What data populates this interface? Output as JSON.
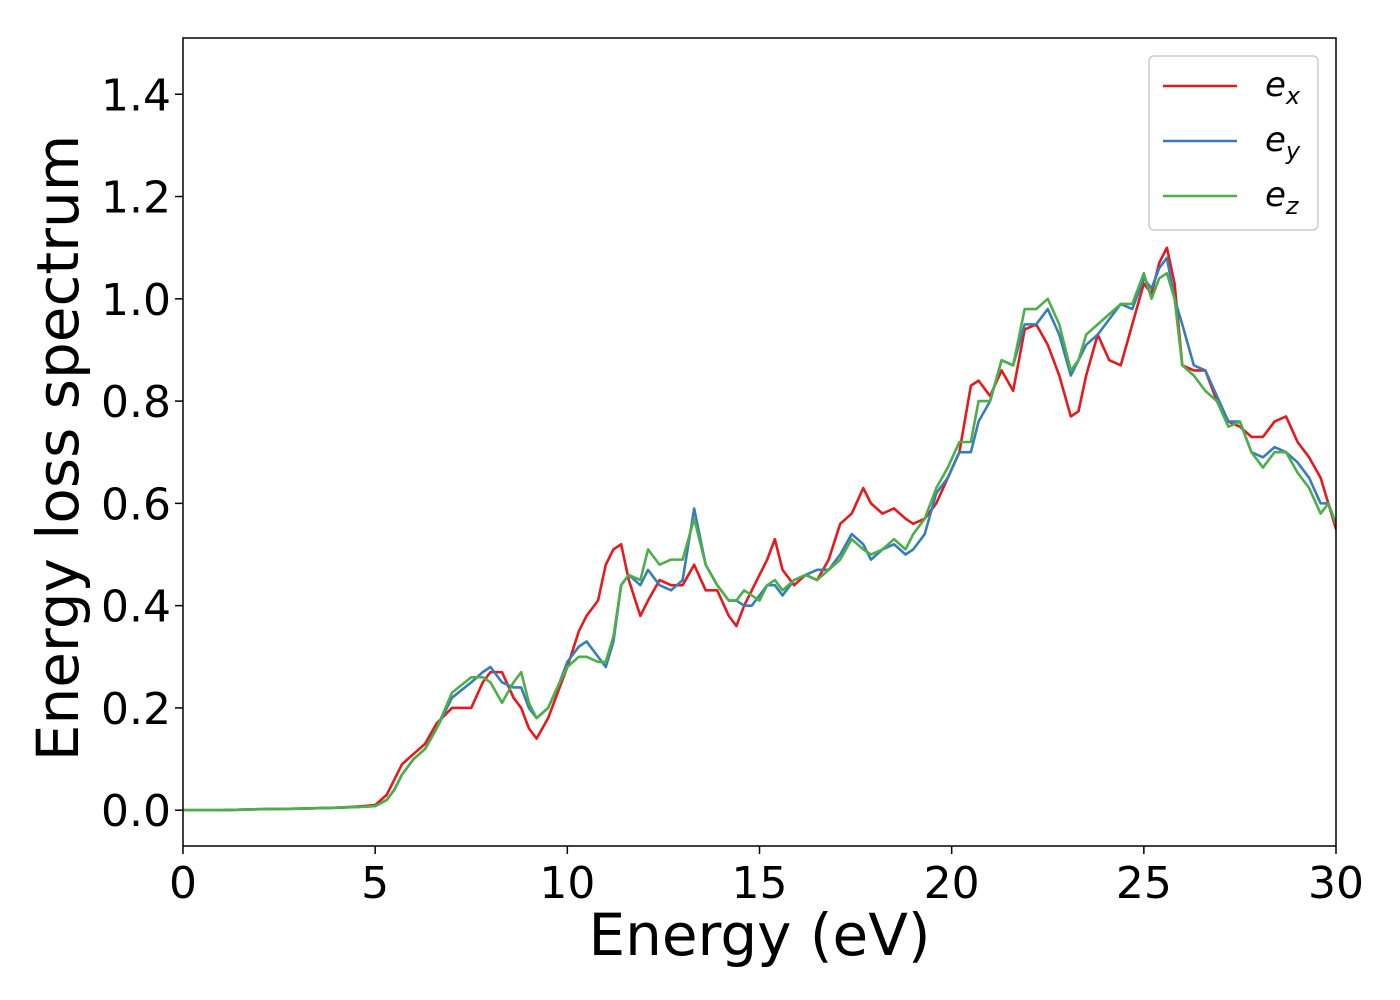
{
  "chart_data": {
    "type": "line",
    "xlabel": "Energy (eV)",
    "ylabel": "Energy loss spectrum",
    "xlim": [
      0,
      30
    ],
    "ylim": [
      -0.07,
      1.51
    ],
    "xticks": [
      "0",
      "5",
      "10",
      "15",
      "20",
      "25",
      "30"
    ],
    "yticks": [
      "0.0",
      "0.2",
      "0.4",
      "0.6",
      "0.8",
      "1.0",
      "1.2",
      "1.4"
    ],
    "xtick_values": [
      0,
      5,
      10,
      15,
      20,
      25,
      30
    ],
    "ytick_values": [
      0.0,
      0.2,
      0.4,
      0.6,
      0.8,
      1.0,
      1.2,
      1.4
    ],
    "grid": false,
    "legend_position": "top-right",
    "series": [
      {
        "name": "e_x",
        "label_base": "e",
        "label_sub": "x",
        "color": "#e41a1c",
        "x": [
          0,
          1,
          2,
          3,
          4,
          4.5,
          5.0,
          5.3,
          5.5,
          5.7,
          6.0,
          6.3,
          6.6,
          7.0,
          7.5,
          7.8,
          8.0,
          8.3,
          8.6,
          8.8,
          9.0,
          9.2,
          9.5,
          9.8,
          10.0,
          10.3,
          10.5,
          10.8,
          11.0,
          11.2,
          11.4,
          11.6,
          11.9,
          12.1,
          12.4,
          12.7,
          13.0,
          13.3,
          13.6,
          13.9,
          14.2,
          14.4,
          14.6,
          14.8,
          15.0,
          15.2,
          15.4,
          15.6,
          15.9,
          16.2,
          16.5,
          16.8,
          17.1,
          17.4,
          17.7,
          17.9,
          18.2,
          18.5,
          18.8,
          19.0,
          19.3,
          19.6,
          19.9,
          20.2,
          20.5,
          20.7,
          21.0,
          21.3,
          21.6,
          21.9,
          22.2,
          22.5,
          22.8,
          23.1,
          23.3,
          23.5,
          23.8,
          24.1,
          24.4,
          24.7,
          25.0,
          25.2,
          25.4,
          25.6,
          25.8,
          26.0,
          26.3,
          26.6,
          26.9,
          27.2,
          27.5,
          27.8,
          28.1,
          28.4,
          28.7,
          29.0,
          29.3,
          29.6,
          29.8,
          30.0
        ],
        "values": [
          0.0,
          0.0,
          0.002,
          0.003,
          0.005,
          0.007,
          0.01,
          0.03,
          0.06,
          0.09,
          0.11,
          0.13,
          0.17,
          0.2,
          0.2,
          0.25,
          0.27,
          0.27,
          0.22,
          0.2,
          0.16,
          0.14,
          0.18,
          0.24,
          0.28,
          0.35,
          0.38,
          0.41,
          0.48,
          0.51,
          0.52,
          0.45,
          0.38,
          0.41,
          0.45,
          0.44,
          0.44,
          0.48,
          0.43,
          0.43,
          0.38,
          0.36,
          0.4,
          0.43,
          0.46,
          0.49,
          0.53,
          0.47,
          0.44,
          0.46,
          0.45,
          0.49,
          0.56,
          0.58,
          0.63,
          0.6,
          0.58,
          0.59,
          0.57,
          0.56,
          0.57,
          0.6,
          0.65,
          0.7,
          0.83,
          0.84,
          0.81,
          0.86,
          0.82,
          0.94,
          0.95,
          0.91,
          0.85,
          0.77,
          0.78,
          0.85,
          0.93,
          0.88,
          0.87,
          0.95,
          1.03,
          1.01,
          1.07,
          1.1,
          1.03,
          0.87,
          0.86,
          0.86,
          0.8,
          0.76,
          0.75,
          0.73,
          0.73,
          0.76,
          0.77,
          0.72,
          0.69,
          0.65,
          0.6,
          0.55
        ]
      },
      {
        "name": "e_y",
        "label_base": "e",
        "label_sub": "y",
        "color": "#377eb8",
        "x": [
          0,
          1,
          2,
          3,
          4,
          4.5,
          5.0,
          5.3,
          5.5,
          5.7,
          6.0,
          6.3,
          6.6,
          7.0,
          7.5,
          7.8,
          8.0,
          8.3,
          8.6,
          8.8,
          9.0,
          9.2,
          9.5,
          9.8,
          10.0,
          10.3,
          10.5,
          10.8,
          11.0,
          11.2,
          11.4,
          11.6,
          11.9,
          12.1,
          12.4,
          12.7,
          13.0,
          13.3,
          13.6,
          13.9,
          14.2,
          14.4,
          14.6,
          14.8,
          15.0,
          15.2,
          15.4,
          15.6,
          15.9,
          16.2,
          16.5,
          16.8,
          17.1,
          17.4,
          17.7,
          17.9,
          18.2,
          18.5,
          18.8,
          19.0,
          19.3,
          19.6,
          19.9,
          20.2,
          20.5,
          20.7,
          21.0,
          21.3,
          21.6,
          21.9,
          22.2,
          22.5,
          22.8,
          23.1,
          23.3,
          23.5,
          23.8,
          24.1,
          24.4,
          24.7,
          25.0,
          25.2,
          25.4,
          25.6,
          25.8,
          26.0,
          26.3,
          26.6,
          26.9,
          27.2,
          27.5,
          27.8,
          28.1,
          28.4,
          28.7,
          29.0,
          29.3,
          29.6,
          29.8,
          30.0
        ],
        "values": [
          0.0,
          0.0,
          0.002,
          0.003,
          0.005,
          0.006,
          0.008,
          0.02,
          0.04,
          0.07,
          0.1,
          0.12,
          0.16,
          0.22,
          0.25,
          0.27,
          0.28,
          0.25,
          0.24,
          0.24,
          0.2,
          0.18,
          0.2,
          0.25,
          0.29,
          0.32,
          0.33,
          0.3,
          0.28,
          0.33,
          0.44,
          0.46,
          0.44,
          0.47,
          0.44,
          0.43,
          0.45,
          0.59,
          0.48,
          0.44,
          0.41,
          0.41,
          0.4,
          0.4,
          0.42,
          0.44,
          0.44,
          0.42,
          0.45,
          0.46,
          0.47,
          0.47,
          0.5,
          0.54,
          0.52,
          0.49,
          0.51,
          0.52,
          0.5,
          0.51,
          0.54,
          0.62,
          0.65,
          0.7,
          0.7,
          0.76,
          0.8,
          0.88,
          0.87,
          0.95,
          0.95,
          0.98,
          0.93,
          0.85,
          0.88,
          0.91,
          0.93,
          0.96,
          0.99,
          0.98,
          1.04,
          1.02,
          1.06,
          1.08,
          1.0,
          0.95,
          0.87,
          0.86,
          0.81,
          0.76,
          0.76,
          0.7,
          0.69,
          0.71,
          0.7,
          0.68,
          0.65,
          0.6,
          0.6,
          0.56
        ]
      },
      {
        "name": "e_z",
        "label_base": "e",
        "label_sub": "z",
        "color": "#4daf4a",
        "x": [
          0,
          1,
          2,
          3,
          4,
          4.5,
          5.0,
          5.3,
          5.5,
          5.7,
          6.0,
          6.3,
          6.6,
          7.0,
          7.5,
          7.8,
          8.0,
          8.3,
          8.6,
          8.8,
          9.0,
          9.2,
          9.5,
          9.8,
          10.0,
          10.3,
          10.5,
          10.8,
          11.0,
          11.2,
          11.4,
          11.6,
          11.9,
          12.1,
          12.4,
          12.7,
          13.0,
          13.3,
          13.6,
          13.9,
          14.2,
          14.4,
          14.6,
          14.8,
          15.0,
          15.2,
          15.4,
          15.6,
          15.9,
          16.2,
          16.5,
          16.8,
          17.1,
          17.4,
          17.7,
          17.9,
          18.2,
          18.5,
          18.8,
          19.0,
          19.3,
          19.6,
          19.9,
          20.2,
          20.5,
          20.7,
          21.0,
          21.3,
          21.6,
          21.9,
          22.2,
          22.5,
          22.8,
          23.1,
          23.3,
          23.5,
          23.8,
          24.1,
          24.4,
          24.7,
          25.0,
          25.2,
          25.4,
          25.6,
          25.8,
          26.0,
          26.3,
          26.6,
          26.9,
          27.2,
          27.5,
          27.8,
          28.1,
          28.4,
          28.7,
          29.0,
          29.3,
          29.6,
          29.8,
          30.0
        ],
        "values": [
          0.0,
          0.0,
          0.002,
          0.003,
          0.005,
          0.006,
          0.008,
          0.02,
          0.04,
          0.07,
          0.1,
          0.12,
          0.16,
          0.23,
          0.26,
          0.26,
          0.25,
          0.21,
          0.25,
          0.27,
          0.21,
          0.18,
          0.2,
          0.25,
          0.28,
          0.3,
          0.3,
          0.29,
          0.29,
          0.34,
          0.44,
          0.46,
          0.45,
          0.51,
          0.48,
          0.49,
          0.49,
          0.57,
          0.48,
          0.44,
          0.41,
          0.41,
          0.43,
          0.42,
          0.41,
          0.44,
          0.45,
          0.43,
          0.45,
          0.46,
          0.45,
          0.47,
          0.49,
          0.53,
          0.51,
          0.5,
          0.51,
          0.53,
          0.51,
          0.54,
          0.57,
          0.63,
          0.67,
          0.72,
          0.72,
          0.8,
          0.8,
          0.88,
          0.87,
          0.98,
          0.98,
          1.0,
          0.95,
          0.86,
          0.88,
          0.93,
          0.95,
          0.97,
          0.99,
          0.99,
          1.05,
          1.0,
          1.04,
          1.05,
          1.0,
          0.87,
          0.85,
          0.82,
          0.8,
          0.75,
          0.76,
          0.7,
          0.67,
          0.7,
          0.7,
          0.66,
          0.63,
          0.58,
          0.6,
          0.56
        ]
      }
    ]
  }
}
